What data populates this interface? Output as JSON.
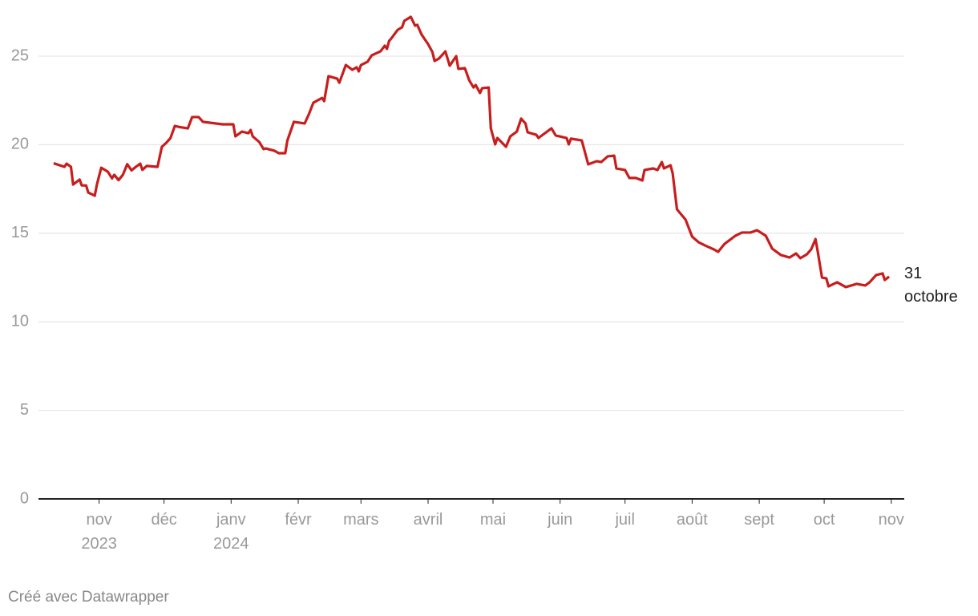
{
  "chart_data": {
    "type": "line",
    "x": [
      "2023-10-11",
      "2023-10-16",
      "2023-10-17",
      "2023-10-19",
      "2023-10-20",
      "2023-10-23",
      "2023-10-24",
      "2023-10-26",
      "2023-10-27",
      "2023-10-30",
      "2023-10-31",
      "2023-11-02",
      "2023-11-05",
      "2023-11-07",
      "2023-11-08",
      "2023-11-10",
      "2023-11-12",
      "2023-11-14",
      "2023-11-16",
      "2023-11-18",
      "2023-11-20",
      "2023-11-21",
      "2023-11-23",
      "2023-11-28",
      "2023-11-30",
      "2023-12-02",
      "2023-12-04",
      "2023-12-06",
      "2023-12-08",
      "2023-12-12",
      "2023-12-14",
      "2023-12-17",
      "2023-12-19",
      "2023-12-28",
      "2024-01-02",
      "2024-01-03",
      "2024-01-06",
      "2024-01-09",
      "2024-01-10",
      "2024-01-11",
      "2024-01-14",
      "2024-01-16",
      "2024-01-17",
      "2024-01-21",
      "2024-01-23",
      "2024-01-26",
      "2024-01-27",
      "2024-01-30",
      "2024-02-04",
      "2024-02-06",
      "2024-02-08",
      "2024-02-12",
      "2024-02-13",
      "2024-02-15",
      "2024-02-19",
      "2024-02-20",
      "2024-02-23",
      "2024-02-26",
      "2024-02-28",
      "2024-02-29",
      "2024-03-01",
      "2024-03-04",
      "2024-03-06",
      "2024-03-10",
      "2024-03-12",
      "2024-03-13",
      "2024-03-14",
      "2024-03-15",
      "2024-03-18",
      "2024-03-20",
      "2024-03-21",
      "2024-03-24",
      "2024-03-26",
      "2024-03-27",
      "2024-03-29",
      "2024-04-01",
      "2024-04-03",
      "2024-04-04",
      "2024-04-06",
      "2024-04-09",
      "2024-04-11",
      "2024-04-14",
      "2024-04-15",
      "2024-04-18",
      "2024-04-20",
      "2024-04-22",
      "2024-04-23",
      "2024-04-25",
      "2024-04-26",
      "2024-04-29",
      "2024-04-30",
      "2024-05-02",
      "2024-05-03",
      "2024-05-07",
      "2024-05-09",
      "2024-05-12",
      "2024-05-14",
      "2024-05-16",
      "2024-05-17",
      "2024-05-21",
      "2024-05-22",
      "2024-05-28",
      "2024-05-30",
      "2024-06-04",
      "2024-06-05",
      "2024-06-06",
      "2024-06-11",
      "2024-06-14",
      "2024-06-18",
      "2024-06-20",
      "2024-06-23",
      "2024-06-26",
      "2024-06-27",
      "2024-07-01",
      "2024-07-03",
      "2024-07-06",
      "2024-07-09",
      "2024-07-10",
      "2024-07-14",
      "2024-07-16",
      "2024-07-18",
      "2024-07-19",
      "2024-07-22",
      "2024-07-23",
      "2024-07-25",
      "2024-07-29",
      "2024-08-01",
      "2024-08-04",
      "2024-08-07",
      "2024-08-11",
      "2024-08-13",
      "2024-08-16",
      "2024-08-21",
      "2024-08-24",
      "2024-08-28",
      "2024-08-31",
      "2024-09-04",
      "2024-09-07",
      "2024-09-11",
      "2024-09-15",
      "2024-09-18",
      "2024-09-20",
      "2024-09-23",
      "2024-09-25",
      "2024-09-27",
      "2024-09-28",
      "2024-09-30",
      "2024-10-02",
      "2024-10-03",
      "2024-10-07",
      "2024-10-11",
      "2024-10-16",
      "2024-10-20",
      "2024-10-22",
      "2024-10-25",
      "2024-10-28",
      "2024-10-29",
      "2024-10-31"
    ],
    "values": [
      18.95,
      18.75,
      18.93,
      18.75,
      17.75,
      18.03,
      17.7,
      17.7,
      17.3,
      17.12,
      17.75,
      18.7,
      18.48,
      18.1,
      18.3,
      18.0,
      18.3,
      18.9,
      18.55,
      18.75,
      18.93,
      18.58,
      18.8,
      18.75,
      19.88,
      20.1,
      20.38,
      21.06,
      21.0,
      20.92,
      21.56,
      21.56,
      21.29,
      21.15,
      21.15,
      20.47,
      20.74,
      20.65,
      20.83,
      20.47,
      20.15,
      19.75,
      19.79,
      19.66,
      19.52,
      19.52,
      20.24,
      21.29,
      21.2,
      21.74,
      22.37,
      22.64,
      22.46,
      23.87,
      23.73,
      23.5,
      24.5,
      24.23,
      24.37,
      24.14,
      24.5,
      24.68,
      25.05,
      25.27,
      25.59,
      25.41,
      25.86,
      26.0,
      26.49,
      26.63,
      26.99,
      27.22,
      26.72,
      26.77,
      26.22,
      25.68,
      25.23,
      24.73,
      24.86,
      25.27,
      24.46,
      25.0,
      24.28,
      24.32,
      23.64,
      23.23,
      23.37,
      22.92,
      23.19,
      23.23,
      20.92,
      20.02,
      20.38,
      19.88,
      20.47,
      20.74,
      21.47,
      21.2,
      20.7,
      20.56,
      20.38,
      20.92,
      20.52,
      20.38,
      20.02,
      20.34,
      20.24,
      18.89,
      19.07,
      19.02,
      19.34,
      19.38,
      18.66,
      18.57,
      18.12,
      18.12,
      17.98,
      18.57,
      18.66,
      18.57,
      19.02,
      18.66,
      18.84,
      18.39,
      16.35,
      15.76,
      14.81,
      14.49,
      14.31,
      14.09,
      13.95,
      14.4,
      14.86,
      15.04,
      15.04,
      15.17,
      14.86,
      14.13,
      13.77,
      13.63,
      13.86,
      13.59,
      13.81,
      14.09,
      14.67,
      13.99,
      12.5,
      12.45,
      12.0,
      12.23,
      11.96,
      12.14,
      12.05,
      12.23,
      12.64,
      12.73,
      12.36,
      12.55
    ],
    "color": "#c71e1d",
    "xlim": [
      "2023-10-04",
      "2024-11-07"
    ],
    "xticks": [
      {
        "value": "2023-11-01",
        "label": "nov\n2023"
      },
      {
        "value": "2023-12-01",
        "label": "déc"
      },
      {
        "value": "2024-01-01",
        "label": "janv\n2024"
      },
      {
        "value": "2024-02-01",
        "label": "févr"
      },
      {
        "value": "2024-03-01",
        "label": "mars"
      },
      {
        "value": "2024-04-01",
        "label": "avril"
      },
      {
        "value": "2024-05-01",
        "label": "mai"
      },
      {
        "value": "2024-06-01",
        "label": "juin"
      },
      {
        "value": "2024-07-01",
        "label": "juil"
      },
      {
        "value": "2024-08-01",
        "label": "août"
      },
      {
        "value": "2024-09-01",
        "label": "sept"
      },
      {
        "value": "2024-10-01",
        "label": "oct"
      },
      {
        "value": "2024-11-01",
        "label": "nov"
      }
    ],
    "ylim": [
      0,
      27.5
    ],
    "yticks": [
      0,
      5,
      10,
      15,
      20,
      25
    ],
    "grid": true,
    "annotation": "31 octobre",
    "credit": "Créé avec Datawrapper"
  }
}
